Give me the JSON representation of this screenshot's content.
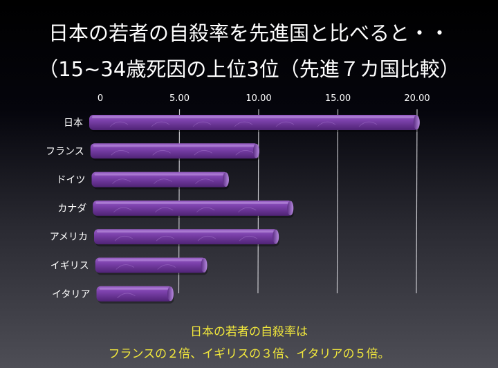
{
  "title": {
    "line1": "日本の若者の自殺率を先進国と比べると・・",
    "line2": "（15~34歳死因の上位3位（先進７カ国比較）"
  },
  "caption": {
    "line1": "日本の若者の自殺率は",
    "line2": "フランスの２倍、イギリスの３倍、イタリアの５倍。"
  },
  "colors": {
    "bar": "#7a3fa8",
    "bar_highlight": "#a774cf",
    "bar_shadow": "#4a2070",
    "caption": "#f2e83c",
    "text": "#ffffff"
  },
  "chart_data": {
    "type": "bar",
    "orientation": "horizontal",
    "categories": [
      "日本",
      "フランス",
      "ドイツ",
      "カナダ",
      "アメリカ",
      "イギリス",
      "イタリア"
    ],
    "values": [
      20.8,
      10.6,
      8.6,
      12.6,
      11.6,
      7.0,
      4.8
    ],
    "tick_labels": [
      "0",
      "5.00",
      "10.00",
      "15.00",
      "20.00"
    ],
    "ticks": [
      0,
      5,
      10,
      15,
      20
    ],
    "xlim": [
      0,
      21
    ],
    "grid": true,
    "legend": "none"
  }
}
